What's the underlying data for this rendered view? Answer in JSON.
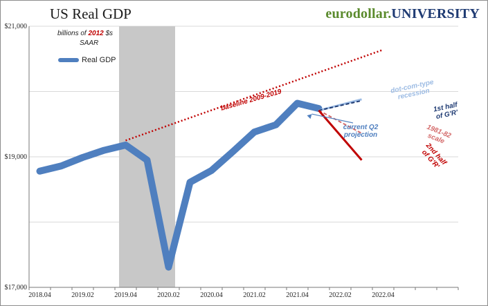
{
  "header": {
    "title": "US Real GDP",
    "brand_part1": "eurodollar.",
    "brand_part2": "UNIVERSITY"
  },
  "units": {
    "line1_pre": "billions of ",
    "line1_year": "2012",
    "line1_post": " $s",
    "line2": "SAAR"
  },
  "legend": {
    "label": "Real GDP"
  },
  "colors": {
    "gdp": "#4f7fbf",
    "baseline": "#c00000",
    "dotcom": "#9dbce4",
    "half1": "#1f3b73",
    "scale8182": "#d46a6a",
    "half2": "#c00000",
    "recession_shade": "#c8c8c8",
    "grid": "#d9d9d9"
  },
  "chart_data": {
    "type": "line",
    "x_tick_labels": [
      "2018.04",
      "2019.02",
      "2019.04",
      "2020.02",
      "2020.04",
      "2021.02",
      "2021.04",
      "2022.02",
      "2022.04"
    ],
    "y_tick_labels": [
      "$17,000",
      "$19,000",
      "$21,000"
    ],
    "ylim": [
      17000,
      21000
    ],
    "recession": {
      "start": "2019.04",
      "end": "2020.02"
    },
    "series": [
      {
        "name": "Real GDP",
        "x": [
          "2018.04",
          "2019.01",
          "2019.02",
          "2019.03",
          "2019.04",
          "2020.01",
          "2020.02",
          "2020.03",
          "2020.04",
          "2021.01",
          "2021.02",
          "2021.03",
          "2021.04",
          "2022.01"
        ],
        "values": [
          18780,
          18860,
          18990,
          19100,
          19180,
          18950,
          17310,
          18610,
          18790,
          19080,
          19380,
          19490,
          19820,
          19740
        ]
      }
    ],
    "projections": [
      {
        "label": "dot-com-type recession",
        "x": [
          "2022.01",
          "2022.03"
        ],
        "values": [
          19710,
          19880
        ]
      },
      {
        "label": "1st half of G'R'",
        "x": [
          "2022.01",
          "2022.03"
        ],
        "values": [
          19710,
          19860
        ]
      },
      {
        "label": "1981-82 scale",
        "x": [
          "2022.01",
          "2022.03"
        ],
        "values": [
          19710,
          19360
        ]
      },
      {
        "label": "2nd half of G'R'",
        "x": [
          "2022.01",
          "2022.03"
        ],
        "values": [
          19710,
          18950
        ]
      }
    ],
    "baseline": {
      "label": "baseline 2009-2019",
      "x": [
        "2019.04",
        "2022.04"
      ],
      "values": [
        19250,
        20640
      ]
    },
    "annotations": {
      "projection_label": "current Q2 projection",
      "dotcom_label": "dot-com-type recession",
      "half1_label": "1st half of G'R'",
      "scale8182_label": "1981-82 scale",
      "half2_label": "2nd half of G'R'"
    }
  }
}
